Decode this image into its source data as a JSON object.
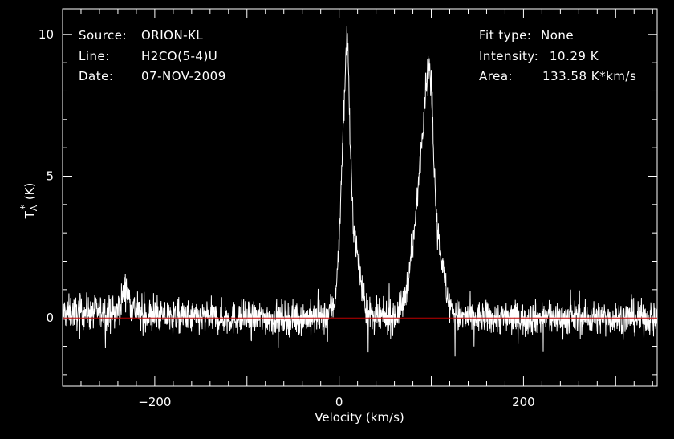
{
  "header": {
    "left": [
      {
        "key": "Source:",
        "value": "ORION-KL"
      },
      {
        "key": "Line:",
        "value": "H2CO(5-4)U"
      },
      {
        "key": "Date:",
        "value": "07-NOV-2009"
      }
    ],
    "right": [
      {
        "key": "Fit type:",
        "value": "None"
      },
      {
        "key": "Intensity:",
        "value": "10.29 K"
      },
      {
        "key": "Area:",
        "value": "133.58 K*km/s"
      }
    ]
  },
  "colors": {
    "background": "#000000",
    "axes": "#ffffff",
    "trace": "#ffffff",
    "baseline": "#c00000"
  },
  "chart_data": {
    "type": "line",
    "xlabel": "Velocity (km/s)",
    "ylabel_main": "T",
    "ylabel_sub": "A",
    "ylabel_sup": "*",
    "ylabel_unit": "(K)",
    "xlim": [
      -300,
      345
    ],
    "ylim": [
      -2.4,
      10.9
    ],
    "xticks": [
      -200,
      0,
      200
    ],
    "xtick_labels": [
      "−200",
      "0",
      "200"
    ],
    "yticks": [
      0,
      5,
      10
    ],
    "ytick_labels": [
      "0",
      "5",
      "10"
    ],
    "baseline_y": 0,
    "series": [
      {
        "x": [
          -300,
          -240,
          -232,
          -226,
          -215,
          -150,
          -100,
          -50,
          -15,
          -5,
          0,
          4,
          7,
          8.5,
          10,
          12,
          15,
          20,
          25,
          30,
          40,
          55,
          65,
          70,
          75,
          80,
          85,
          90,
          95,
          97.5,
          100,
          103,
          106,
          110,
          115,
          120,
          130,
          160,
          200,
          260,
          300,
          345
        ],
        "values": [
          0.2,
          0.2,
          1.1,
          0.5,
          0.1,
          0.0,
          0.0,
          0.0,
          0.0,
          0.5,
          2.5,
          6.5,
          8.8,
          10.2,
          9.0,
          6.0,
          3.5,
          2.2,
          1.0,
          0.2,
          0.0,
          0.0,
          0.2,
          0.6,
          1.3,
          2.5,
          4.3,
          6.5,
          8.5,
          9.0,
          8.2,
          5.5,
          3.5,
          2.3,
          1.2,
          0.4,
          0.0,
          0.0,
          0.0,
          0.0,
          0.0,
          0.0
        ]
      }
    ]
  }
}
